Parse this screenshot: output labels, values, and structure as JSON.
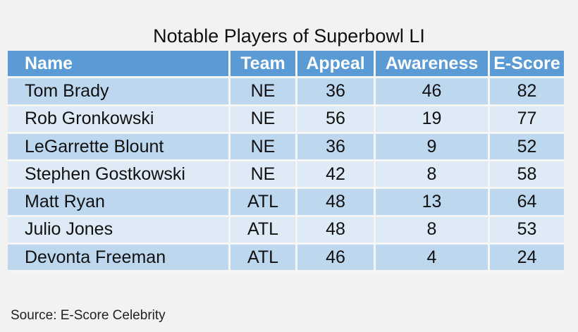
{
  "chart_data": {
    "type": "table",
    "title": "Notable Players of Superbowl LI",
    "columns": [
      "Name",
      "Team",
      "Appeal",
      "Awareness",
      "E-Score"
    ],
    "rows": [
      [
        "Tom Brady",
        "NE",
        "36",
        "46",
        "82"
      ],
      [
        "Rob Gronkowski",
        "NE",
        "56",
        "19",
        "77"
      ],
      [
        "LeGarrette Blount",
        "NE",
        "36",
        "9",
        "52"
      ],
      [
        "Stephen Gostkowski",
        "NE",
        "42",
        "8",
        "58"
      ],
      [
        "Matt Ryan",
        "ATL",
        "48",
        "13",
        "64"
      ],
      [
        "Julio Jones",
        "ATL",
        "48",
        "8",
        "53"
      ],
      [
        "Devonta Freeman",
        "ATL",
        "46",
        "4",
        "24"
      ]
    ],
    "colors": {
      "header": "#5b9bd5",
      "row_odd": "#bdd7ee",
      "row_even": "#deebf7"
    }
  },
  "source": "Source: E-Score Celebrity"
}
